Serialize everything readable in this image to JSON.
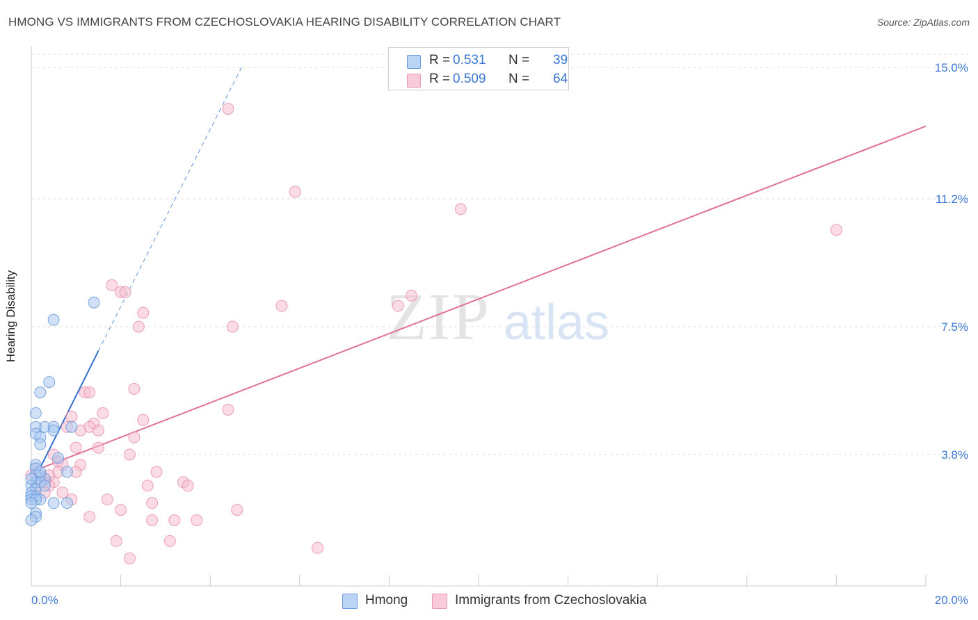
{
  "title": "HMONG VS IMMIGRANTS FROM CZECHOSLOVAKIA HEARING DISABILITY CORRELATION CHART",
  "source": "Source: ZipAtlas.com",
  "watermark": {
    "zip": "ZIP",
    "atlas": "atlas"
  },
  "legend": {
    "hmong": {
      "r_label": "R =",
      "r_value": "0.531",
      "n_label": "N =",
      "n_value": "39"
    },
    "czech": {
      "r_label": "R =",
      "r_value": "0.509",
      "n_label": "N =",
      "n_value": "64"
    }
  },
  "colors": {
    "hmong_fill": "#a9c8f0",
    "hmong_stroke": "#5f93d8",
    "hmong_line": "#2f6fce",
    "czech_fill": "#f7bfd0",
    "czech_stroke": "#e88aa8",
    "czech_line": "#e07098",
    "accent_text": "#3a78d4",
    "grid": "#dddddd"
  },
  "chart_data": {
    "type": "scatter",
    "title": "HMONG VS IMMIGRANTS FROM CZECHOSLOVAKIA HEARING DISABILITY CORRELATION CHART",
    "xlabel": "",
    "ylabel": "Hearing Disability",
    "xlim": [
      0,
      20
    ],
    "ylim": [
      0,
      15
    ],
    "x_tick_labels": [
      "0.0%",
      "20.0%"
    ],
    "y_ticks": [
      3.8,
      7.5,
      11.2,
      15.0
    ],
    "y_tick_labels": [
      "3.8%",
      "7.5%",
      "11.2%",
      "15.0%"
    ],
    "grid": "horizontal dashed",
    "legend_position": "top-center and bottom",
    "series": [
      {
        "name": "Hmong",
        "r": 0.531,
        "n": 39,
        "trend": {
          "x0": 0.0,
          "y0": 2.9,
          "x1": 1.5,
          "y1": 6.8,
          "dashed_to": {
            "x": 4.7,
            "y": 15.0
          }
        },
        "points": [
          [
            0.5,
            7.7
          ],
          [
            1.4,
            8.2
          ],
          [
            0.4,
            5.9
          ],
          [
            0.2,
            5.6
          ],
          [
            0.1,
            5.0
          ],
          [
            0.3,
            4.6
          ],
          [
            0.5,
            4.6
          ],
          [
            0.9,
            4.6
          ],
          [
            0.1,
            4.6
          ],
          [
            0.5,
            4.5
          ],
          [
            0.1,
            4.4
          ],
          [
            0.2,
            4.3
          ],
          [
            0.2,
            4.1
          ],
          [
            0.6,
            3.7
          ],
          [
            0.1,
            3.5
          ],
          [
            0.1,
            3.4
          ],
          [
            0.8,
            3.3
          ],
          [
            0.2,
            3.2
          ],
          [
            0.1,
            3.2
          ],
          [
            0.3,
            3.1
          ],
          [
            0.1,
            3.0
          ],
          [
            0.2,
            3.0
          ],
          [
            0.0,
            2.9
          ],
          [
            0.1,
            2.8
          ],
          [
            0.0,
            2.7
          ],
          [
            0.1,
            2.6
          ],
          [
            0.0,
            2.6
          ],
          [
            0.0,
            2.5
          ],
          [
            0.2,
            2.5
          ],
          [
            0.8,
            2.4
          ],
          [
            0.5,
            2.4
          ],
          [
            0.1,
            2.5
          ],
          [
            0.0,
            2.4
          ],
          [
            0.1,
            2.1
          ],
          [
            0.1,
            2.0
          ],
          [
            0.0,
            1.9
          ],
          [
            0.0,
            3.1
          ],
          [
            0.2,
            3.3
          ],
          [
            0.3,
            2.9
          ]
        ]
      },
      {
        "name": "Immigrants from Czechoslovakia",
        "r": 0.509,
        "n": 64,
        "trend": {
          "x0": 0.0,
          "y0": 3.3,
          "x1": 20.0,
          "y1": 13.3
        },
        "points": [
          [
            4.4,
            13.8
          ],
          [
            5.9,
            11.4
          ],
          [
            9.6,
            10.9
          ],
          [
            18.0,
            10.3
          ],
          [
            1.8,
            8.7
          ],
          [
            2.0,
            8.5
          ],
          [
            2.1,
            8.5
          ],
          [
            8.5,
            8.4
          ],
          [
            8.2,
            8.1
          ],
          [
            5.6,
            8.1
          ],
          [
            2.5,
            7.9
          ],
          [
            2.4,
            7.5
          ],
          [
            4.5,
            7.5
          ],
          [
            2.3,
            5.7
          ],
          [
            1.2,
            5.6
          ],
          [
            1.3,
            5.6
          ],
          [
            4.4,
            5.1
          ],
          [
            1.6,
            5.0
          ],
          [
            0.9,
            4.9
          ],
          [
            2.5,
            4.8
          ],
          [
            1.4,
            4.7
          ],
          [
            1.3,
            4.6
          ],
          [
            0.8,
            4.6
          ],
          [
            1.1,
            4.5
          ],
          [
            1.5,
            4.5
          ],
          [
            2.3,
            4.3
          ],
          [
            1.0,
            4.0
          ],
          [
            1.5,
            4.0
          ],
          [
            0.5,
            3.8
          ],
          [
            2.2,
            3.8
          ],
          [
            1.1,
            3.5
          ],
          [
            0.6,
            3.6
          ],
          [
            0.7,
            3.5
          ],
          [
            1.0,
            3.3
          ],
          [
            2.8,
            3.3
          ],
          [
            0.4,
            3.2
          ],
          [
            0.2,
            3.2
          ],
          [
            0.3,
            3.1
          ],
          [
            0.5,
            3.0
          ],
          [
            0.2,
            3.1
          ],
          [
            3.4,
            3.0
          ],
          [
            3.5,
            2.9
          ],
          [
            2.6,
            2.9
          ],
          [
            0.4,
            2.9
          ],
          [
            0.3,
            2.7
          ],
          [
            0.7,
            2.7
          ],
          [
            0.9,
            2.5
          ],
          [
            1.7,
            2.5
          ],
          [
            2.7,
            2.4
          ],
          [
            0.6,
            3.3
          ],
          [
            2.0,
            2.2
          ],
          [
            4.6,
            2.2
          ],
          [
            1.3,
            2.0
          ],
          [
            2.7,
            1.9
          ],
          [
            3.2,
            1.9
          ],
          [
            3.7,
            1.9
          ],
          [
            1.9,
            1.3
          ],
          [
            3.1,
            1.3
          ],
          [
            6.4,
            1.1
          ],
          [
            2.2,
            0.8
          ],
          [
            0.1,
            3.4
          ],
          [
            0.3,
            3.0
          ],
          [
            0.1,
            2.8
          ],
          [
            0.0,
            3.2
          ]
        ]
      }
    ]
  },
  "bottom_legend": {
    "hmong": "Hmong",
    "czech": "Immigrants from Czechoslovakia"
  }
}
